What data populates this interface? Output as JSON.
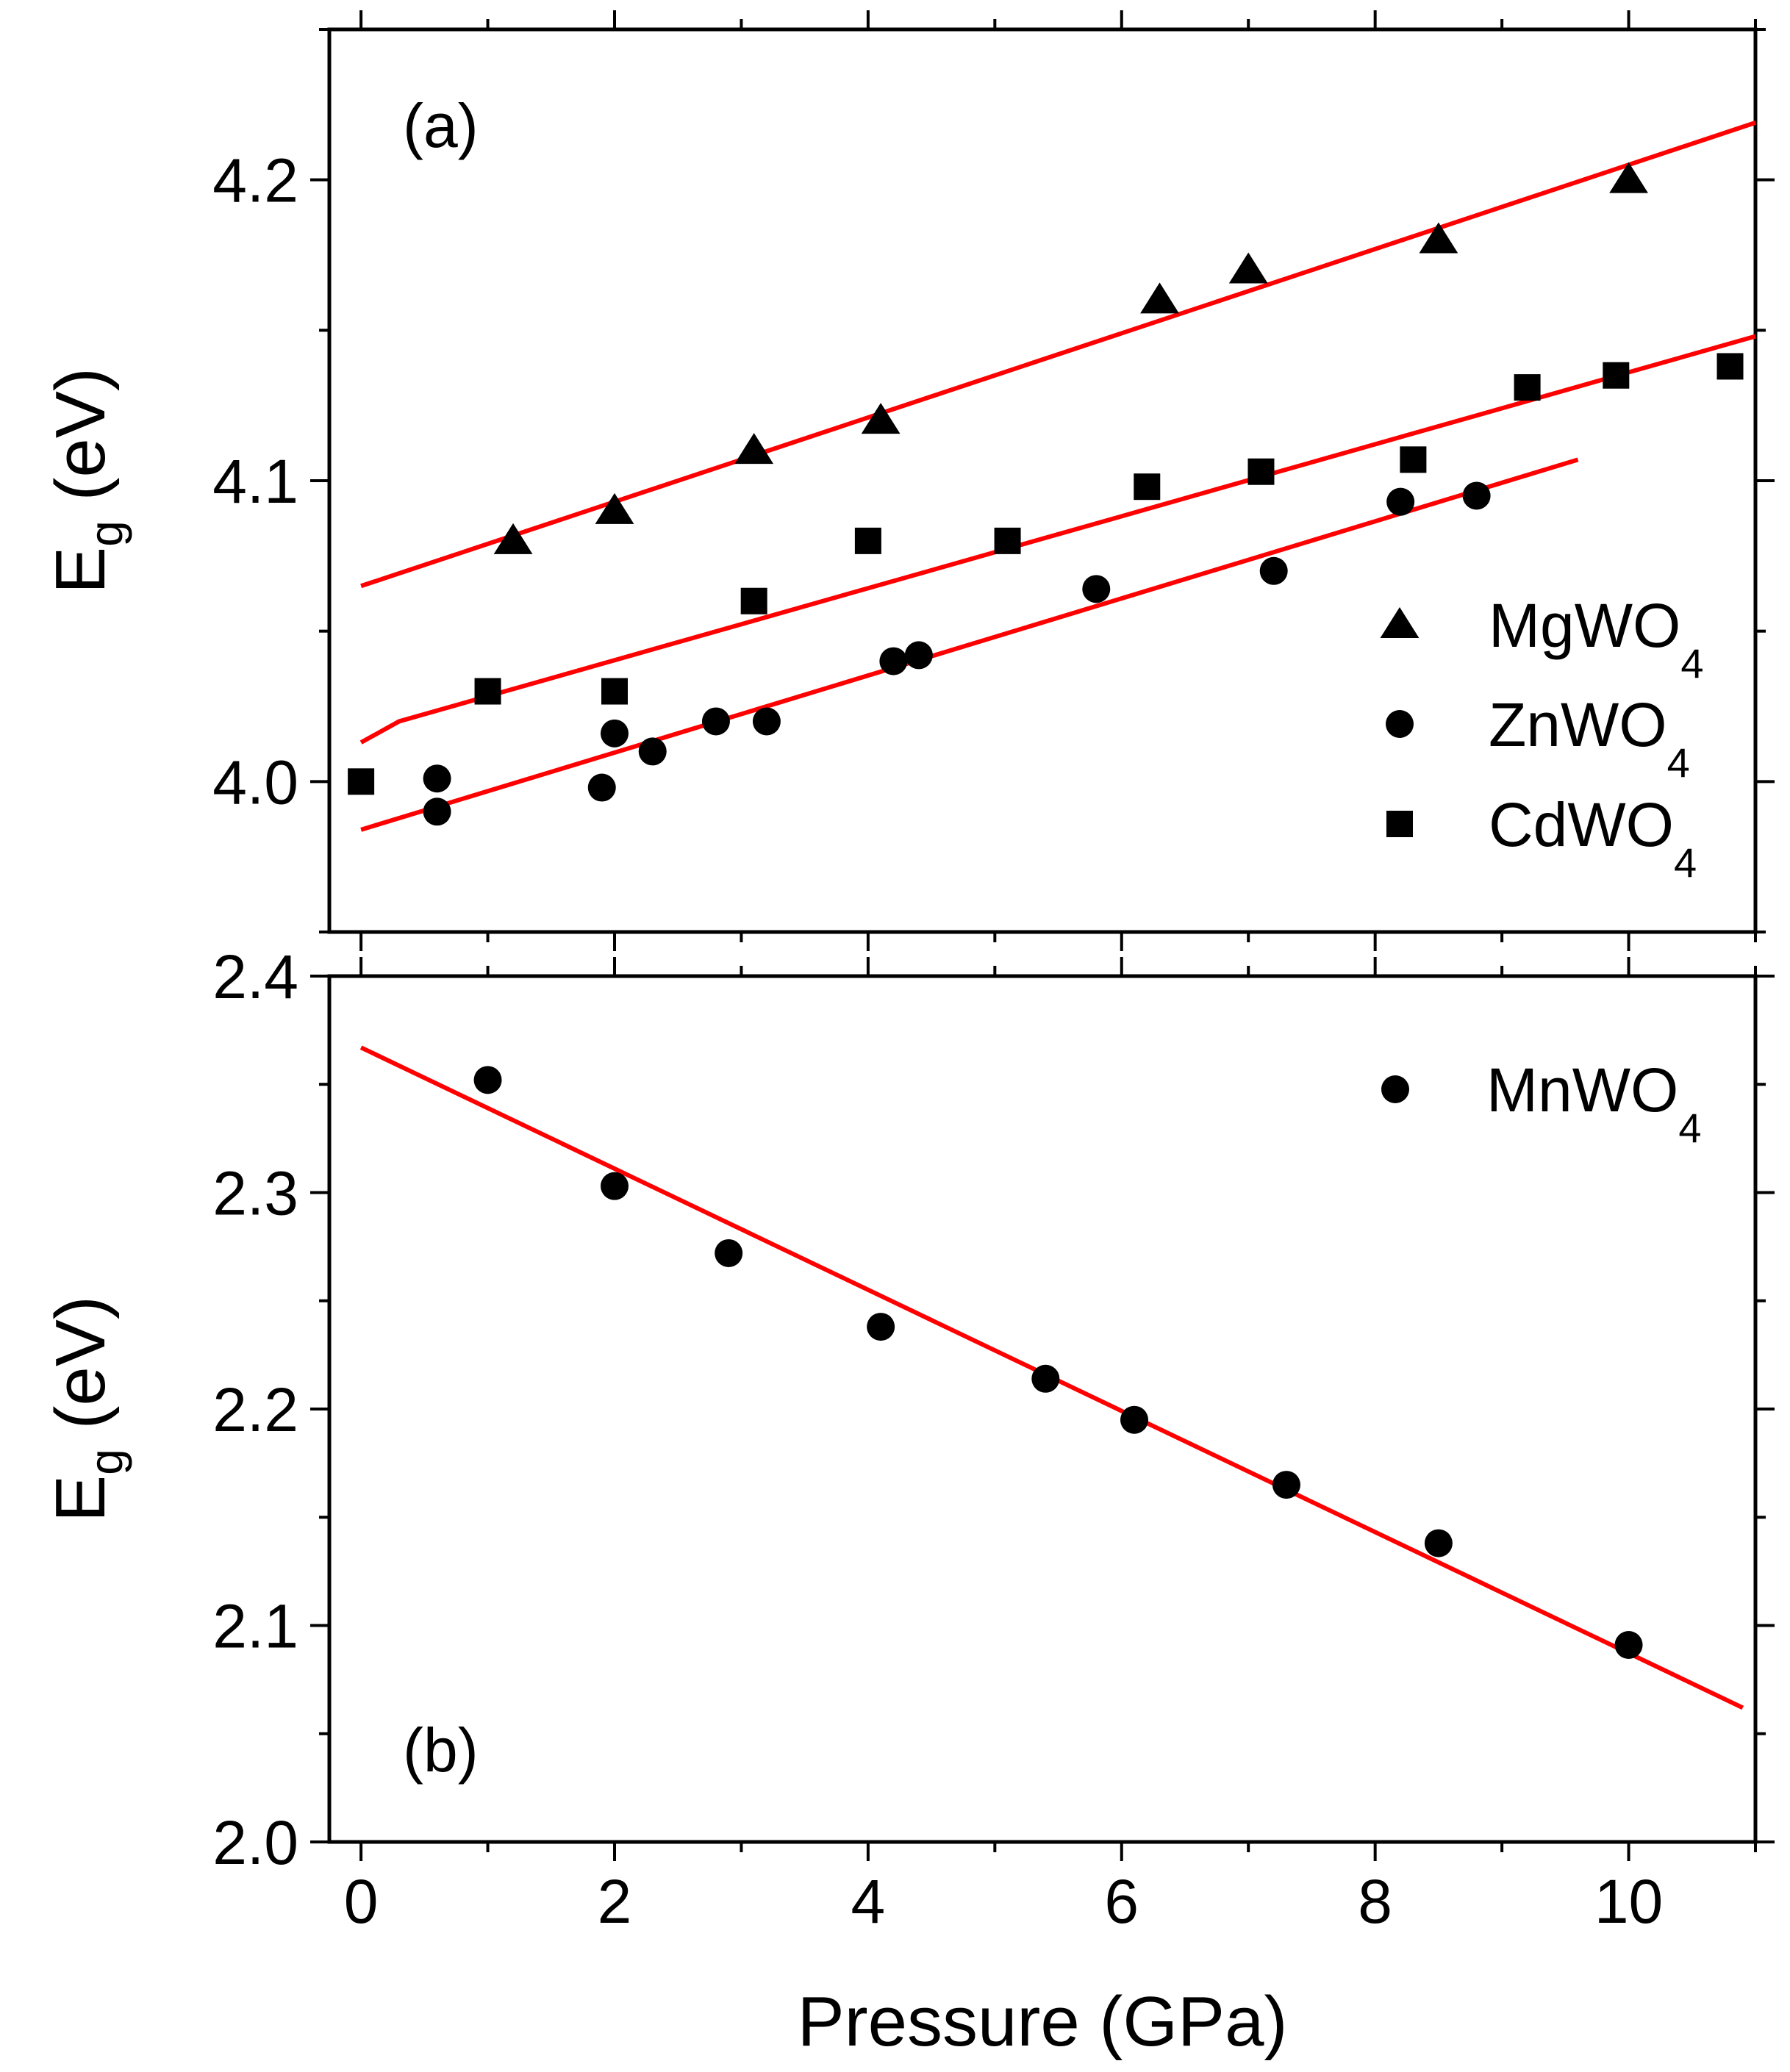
{
  "chart_data": [
    {
      "panel": "a",
      "type": "scatter",
      "panel_label": "(a)",
      "xlabel": "",
      "ylabel": "E_g (eV)",
      "ylabel_main": "E",
      "ylabel_sub": "g",
      "ylabel_unit": " (eV)",
      "xlim": [
        -0.25,
        11
      ],
      "ylim": [
        3.95,
        4.25
      ],
      "yticks": [
        4.0,
        4.1,
        4.2
      ],
      "ytick_labels": [
        "4.0",
        "4.1",
        "4.2"
      ],
      "legend_position": "right",
      "series": [
        {
          "name": "MgWO4",
          "label_main": "MgWO",
          "label_sub": "4",
          "marker": "triangle",
          "color": "#000000",
          "x": [
            1.2,
            2.0,
            3.1,
            4.1,
            6.3,
            7.0,
            8.5,
            10.0
          ],
          "y": [
            4.08,
            4.09,
            4.11,
            4.12,
            4.16,
            4.17,
            4.18,
            4.2
          ]
        },
        {
          "name": "ZnWO4",
          "label_main": "ZnWO",
          "label_sub": "4",
          "marker": "circle",
          "color": "#000000",
          "x": [
            0.6,
            0.6,
            1.9,
            2.0,
            2.3,
            2.8,
            3.2,
            4.2,
            4.4,
            5.8,
            7.2,
            8.2,
            8.8
          ],
          "y": [
            4.001,
            3.99,
            3.998,
            4.016,
            4.01,
            4.02,
            4.02,
            4.04,
            4.042,
            4.064,
            4.07,
            4.093,
            4.095
          ]
        },
        {
          "name": "CdWO4",
          "label_main": "CdWO",
          "label_sub": "4",
          "marker": "square",
          "color": "#000000",
          "x": [
            0.0,
            1.0,
            2.0,
            3.1,
            4.0,
            5.1,
            6.2,
            7.1,
            8.3,
            9.2,
            9.9,
            10.8
          ],
          "y": [
            4.0,
            4.03,
            4.03,
            4.06,
            4.08,
            4.08,
            4.098,
            4.103,
            4.107,
            4.131,
            4.135,
            4.138
          ]
        }
      ],
      "fits": [
        {
          "name": "MgWO4 fit",
          "color": "#ff0000",
          "x": [
            0.0,
            11.0
          ],
          "y": [
            4.065,
            4.219
          ]
        },
        {
          "name": "CdWO4 fit",
          "color": "#ff0000",
          "x": [
            0.0,
            0.3,
            11.0
          ],
          "y": [
            4.013,
            4.02,
            4.148
          ]
        },
        {
          "name": "ZnWO4 fit",
          "color": "#ff0000",
          "x": [
            0.0,
            9.6
          ],
          "y": [
            3.984,
            4.107
          ]
        }
      ]
    },
    {
      "panel": "b",
      "type": "scatter",
      "panel_label": "(b)",
      "xlabel": "Pressure (GPa)",
      "ylabel": "E_g (eV)",
      "ylabel_main": "E",
      "ylabel_sub": "g",
      "ylabel_unit": " (eV)",
      "xlim": [
        -0.25,
        11
      ],
      "ylim": [
        2.0,
        2.4
      ],
      "xticks": [
        0,
        2,
        4,
        6,
        8,
        10
      ],
      "xtick_labels": [
        "0",
        "2",
        "4",
        "6",
        "8",
        "10"
      ],
      "yticks": [
        2.0,
        2.1,
        2.2,
        2.3,
        2.4
      ],
      "ytick_labels": [
        "2.0",
        "2.1",
        "2.2",
        "2.3",
        "2.4"
      ],
      "legend_position": "top-right",
      "series": [
        {
          "name": "MnWO4",
          "label_main": "MnWO",
          "label_sub": "4",
          "marker": "circle",
          "color": "#000000",
          "x": [
            1.0,
            2.0,
            2.9,
            4.1,
            5.4,
            6.1,
            7.3,
            8.5,
            10.0
          ],
          "y": [
            2.352,
            2.303,
            2.272,
            2.238,
            2.214,
            2.195,
            2.165,
            2.138,
            2.091
          ]
        }
      ],
      "fits": [
        {
          "name": "MnWO4 fit",
          "color": "#ff0000",
          "x": [
            0.0,
            10.9
          ],
          "y": [
            2.367,
            2.062
          ]
        }
      ]
    }
  ]
}
